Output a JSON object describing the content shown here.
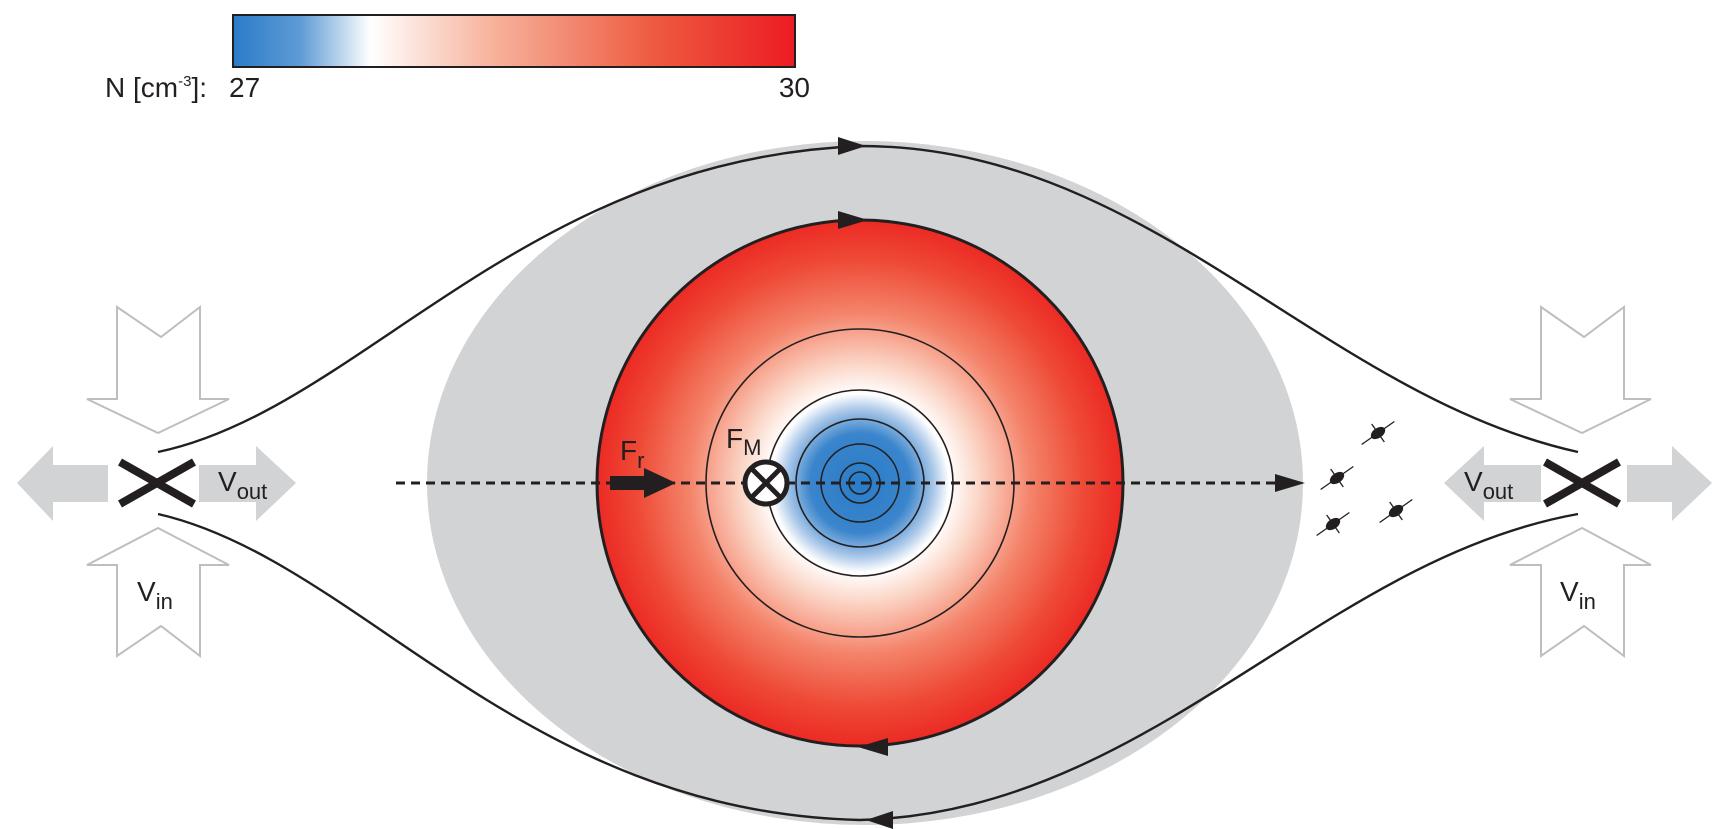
{
  "colorbar": {
    "label_main": "N [cm",
    "label_exp": "-3",
    "label_tail": "]:",
    "min_label": "27",
    "max_label": "30",
    "min_value": 27,
    "max_value": 30,
    "stops": [
      "#2a7cc8",
      "#ffffff",
      "#ec1c24"
    ]
  },
  "labels": {
    "fr_main": "F",
    "fr_sub": "r",
    "fm_main": "F",
    "fm_sub": "M",
    "vout_main": "V",
    "vout_sub": "out",
    "vin_main": "V",
    "vin_sub": "in"
  },
  "colors": {
    "separatrix_fill": "#d1d3d4",
    "arrow_outline": "#bcbec0",
    "outflow_arrow_fill": "#d1d3d4",
    "line": "#231f20",
    "core_blue": "#2a7cc8",
    "shell_red": "#ec1c24"
  },
  "icons": [
    "x-line-icon",
    "cross-current-icon",
    "force-arrow-icon",
    "particle-icon"
  ]
}
